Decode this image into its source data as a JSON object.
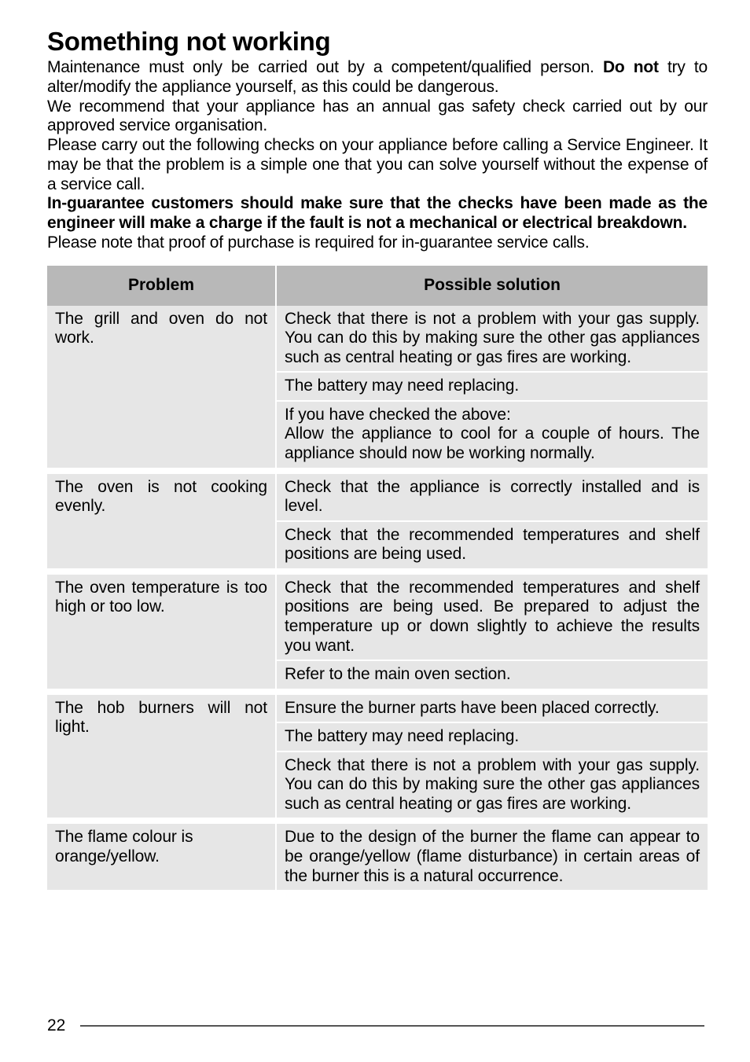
{
  "title": "Something not working",
  "intro": {
    "p1a": "Maintenance must only be carried out by a competent/qualified person.  ",
    "p1b": "Do not",
    "p1c": " try to alter/modify the appliance yourself, as this could be dangerous.",
    "p2": "We recommend that your appliance has an annual gas safety check carried out by our approved service organisation.",
    "p3": "Please carry out the following checks on your appliance before calling a Service Engineer.  It may be that the problem is a simple one that you can solve yourself without the expense of a service call.",
    "p4": "In-guarantee customers should make sure that the checks have been made as the engineer will make a charge if the fault is not a mechanical or electrical breakdown.",
    "p5": "Please note that proof of purchase is required for in-guarantee service calls."
  },
  "table": {
    "header_problem": "Problem",
    "header_solution": "Possible solution",
    "rows": [
      {
        "problem": "The grill and oven do not work.",
        "solutions": [
          "Check that there is not a problem with your gas supply.  You can do this by making sure the other gas appliances such as central heating or gas fires are working.",
          "The battery may need replacing.",
          "If you have checked the above:\nAllow the appliance to cool for a couple of hours.  The appliance should now be working normally."
        ]
      },
      {
        "problem": "The oven is not cooking evenly.",
        "solutions": [
          "Check that the appliance is correctly installed and is level.",
          "Check that the recommended temperatures and shelf positions are being used."
        ]
      },
      {
        "problem": "The oven temperature is too high or too low.",
        "solutions": [
          "Check that the recommended temperatures and shelf positions are being used.  Be prepared to adjust the temperature up or down slightly to achieve the results you want.",
          "Refer to the main oven section."
        ]
      },
      {
        "problem": "The hob burners will not light.",
        "solutions": [
          "Ensure the burner parts have been placed correctly.",
          "The battery may need replacing.",
          "Check that there is not a problem with your gas supply.  You can do this by making sure the other gas appliances such as central heating or gas fires are working."
        ]
      },
      {
        "problem": "The flame colour is orange/yellow.",
        "problem_nojustify": true,
        "solutions": [
          "Due to the design of the burner the flame can appear to be orange/yellow (flame disturbance) in certain areas of the burner this is a natural occurrence."
        ]
      }
    ]
  },
  "page_number": "22"
}
